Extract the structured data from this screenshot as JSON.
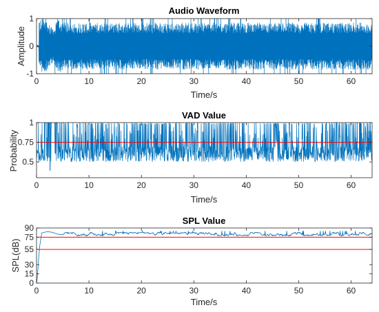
{
  "chart_data": [
    {
      "type": "line",
      "title": "Audio Waveform",
      "xlabel": "Time/s",
      "ylabel": "Amplitude",
      "xlim": [
        0,
        64
      ],
      "ylim": [
        -1,
        1
      ],
      "xticks": [
        0,
        10,
        20,
        30,
        40,
        50,
        60
      ],
      "yticks": [
        -1,
        0,
        1
      ],
      "color": "#0072bd",
      "series": [
        {
          "x": [
            0,
            0.5,
            1,
            2,
            3,
            3.5,
            4,
            4.5,
            5,
            10,
            20,
            30,
            40,
            50,
            60,
            64
          ],
          "envelope_upper": [
            0.05,
            0.9,
            1.0,
            0.9,
            0.7,
            0.75,
            0.95,
            1.0,
            0.85,
            0.85,
            0.85,
            0.85,
            0.85,
            0.85,
            0.85,
            0.85
          ],
          "envelope_lower": [
            -0.05,
            -0.9,
            -1.0,
            -0.9,
            -0.6,
            -0.7,
            -0.9,
            -1.0,
            -0.85,
            -0.85,
            -0.85,
            -0.85,
            -0.85,
            -0.85,
            -0.85,
            -0.85
          ]
        }
      ],
      "grid": false
    },
    {
      "type": "line",
      "title": "VAD Value",
      "xlabel": "Time/s",
      "ylabel": "Probability",
      "xlim": [
        0,
        64
      ],
      "ylim": [
        0.3,
        1
      ],
      "xticks": [
        0,
        10,
        20,
        30,
        40,
        50,
        60
      ],
      "yticks": [
        0.5,
        0.75,
        1
      ],
      "ytick_labels": [
        "0.5",
        "0.75",
        "1"
      ],
      "color": "#0072bd",
      "baseline_range": [
        0.5,
        0.7
      ],
      "spike_max": 1.0,
      "threshold": {
        "value": 0.75,
        "color": "#ff0000"
      },
      "grid": false
    },
    {
      "type": "line",
      "title": "SPL Value",
      "xlabel": "Time/s",
      "ylabel": "SPL(dB)",
      "xlim": [
        0,
        64
      ],
      "ylim": [
        0,
        90
      ],
      "xticks": [
        0,
        10,
        20,
        30,
        40,
        50,
        60
      ],
      "yticks": [
        0,
        15,
        30,
        55,
        75,
        90
      ],
      "color": "#0072bd",
      "series": [
        {
          "x": [
            0,
            0.1,
            0.2,
            0.4,
            0.6,
            1,
            2,
            3,
            4,
            5,
            64
          ],
          "y": [
            0,
            5,
            15,
            40,
            60,
            82,
            84,
            83,
            80,
            79,
            79
          ],
          "sustained_range": [
            77,
            83
          ]
        }
      ],
      "thresholds": [
        {
          "value": 75,
          "color": "#ff0000"
        },
        {
          "value": 55,
          "color": "#ff0000"
        }
      ],
      "grid": false
    }
  ]
}
